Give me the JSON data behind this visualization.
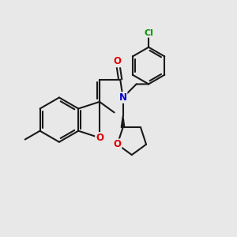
{
  "bg_color": "#e8e8e8",
  "bond_color": "#1a1a1a",
  "bond_width": 1.5,
  "atom_colors": {
    "O": "#dd0000",
    "N": "#0000cc",
    "Cl": "#009900",
    "C": "#1a1a1a"
  },
  "font_size_atom": 8.5,
  "fig_width": 3.0,
  "fig_height": 3.0,
  "dpi": 100
}
